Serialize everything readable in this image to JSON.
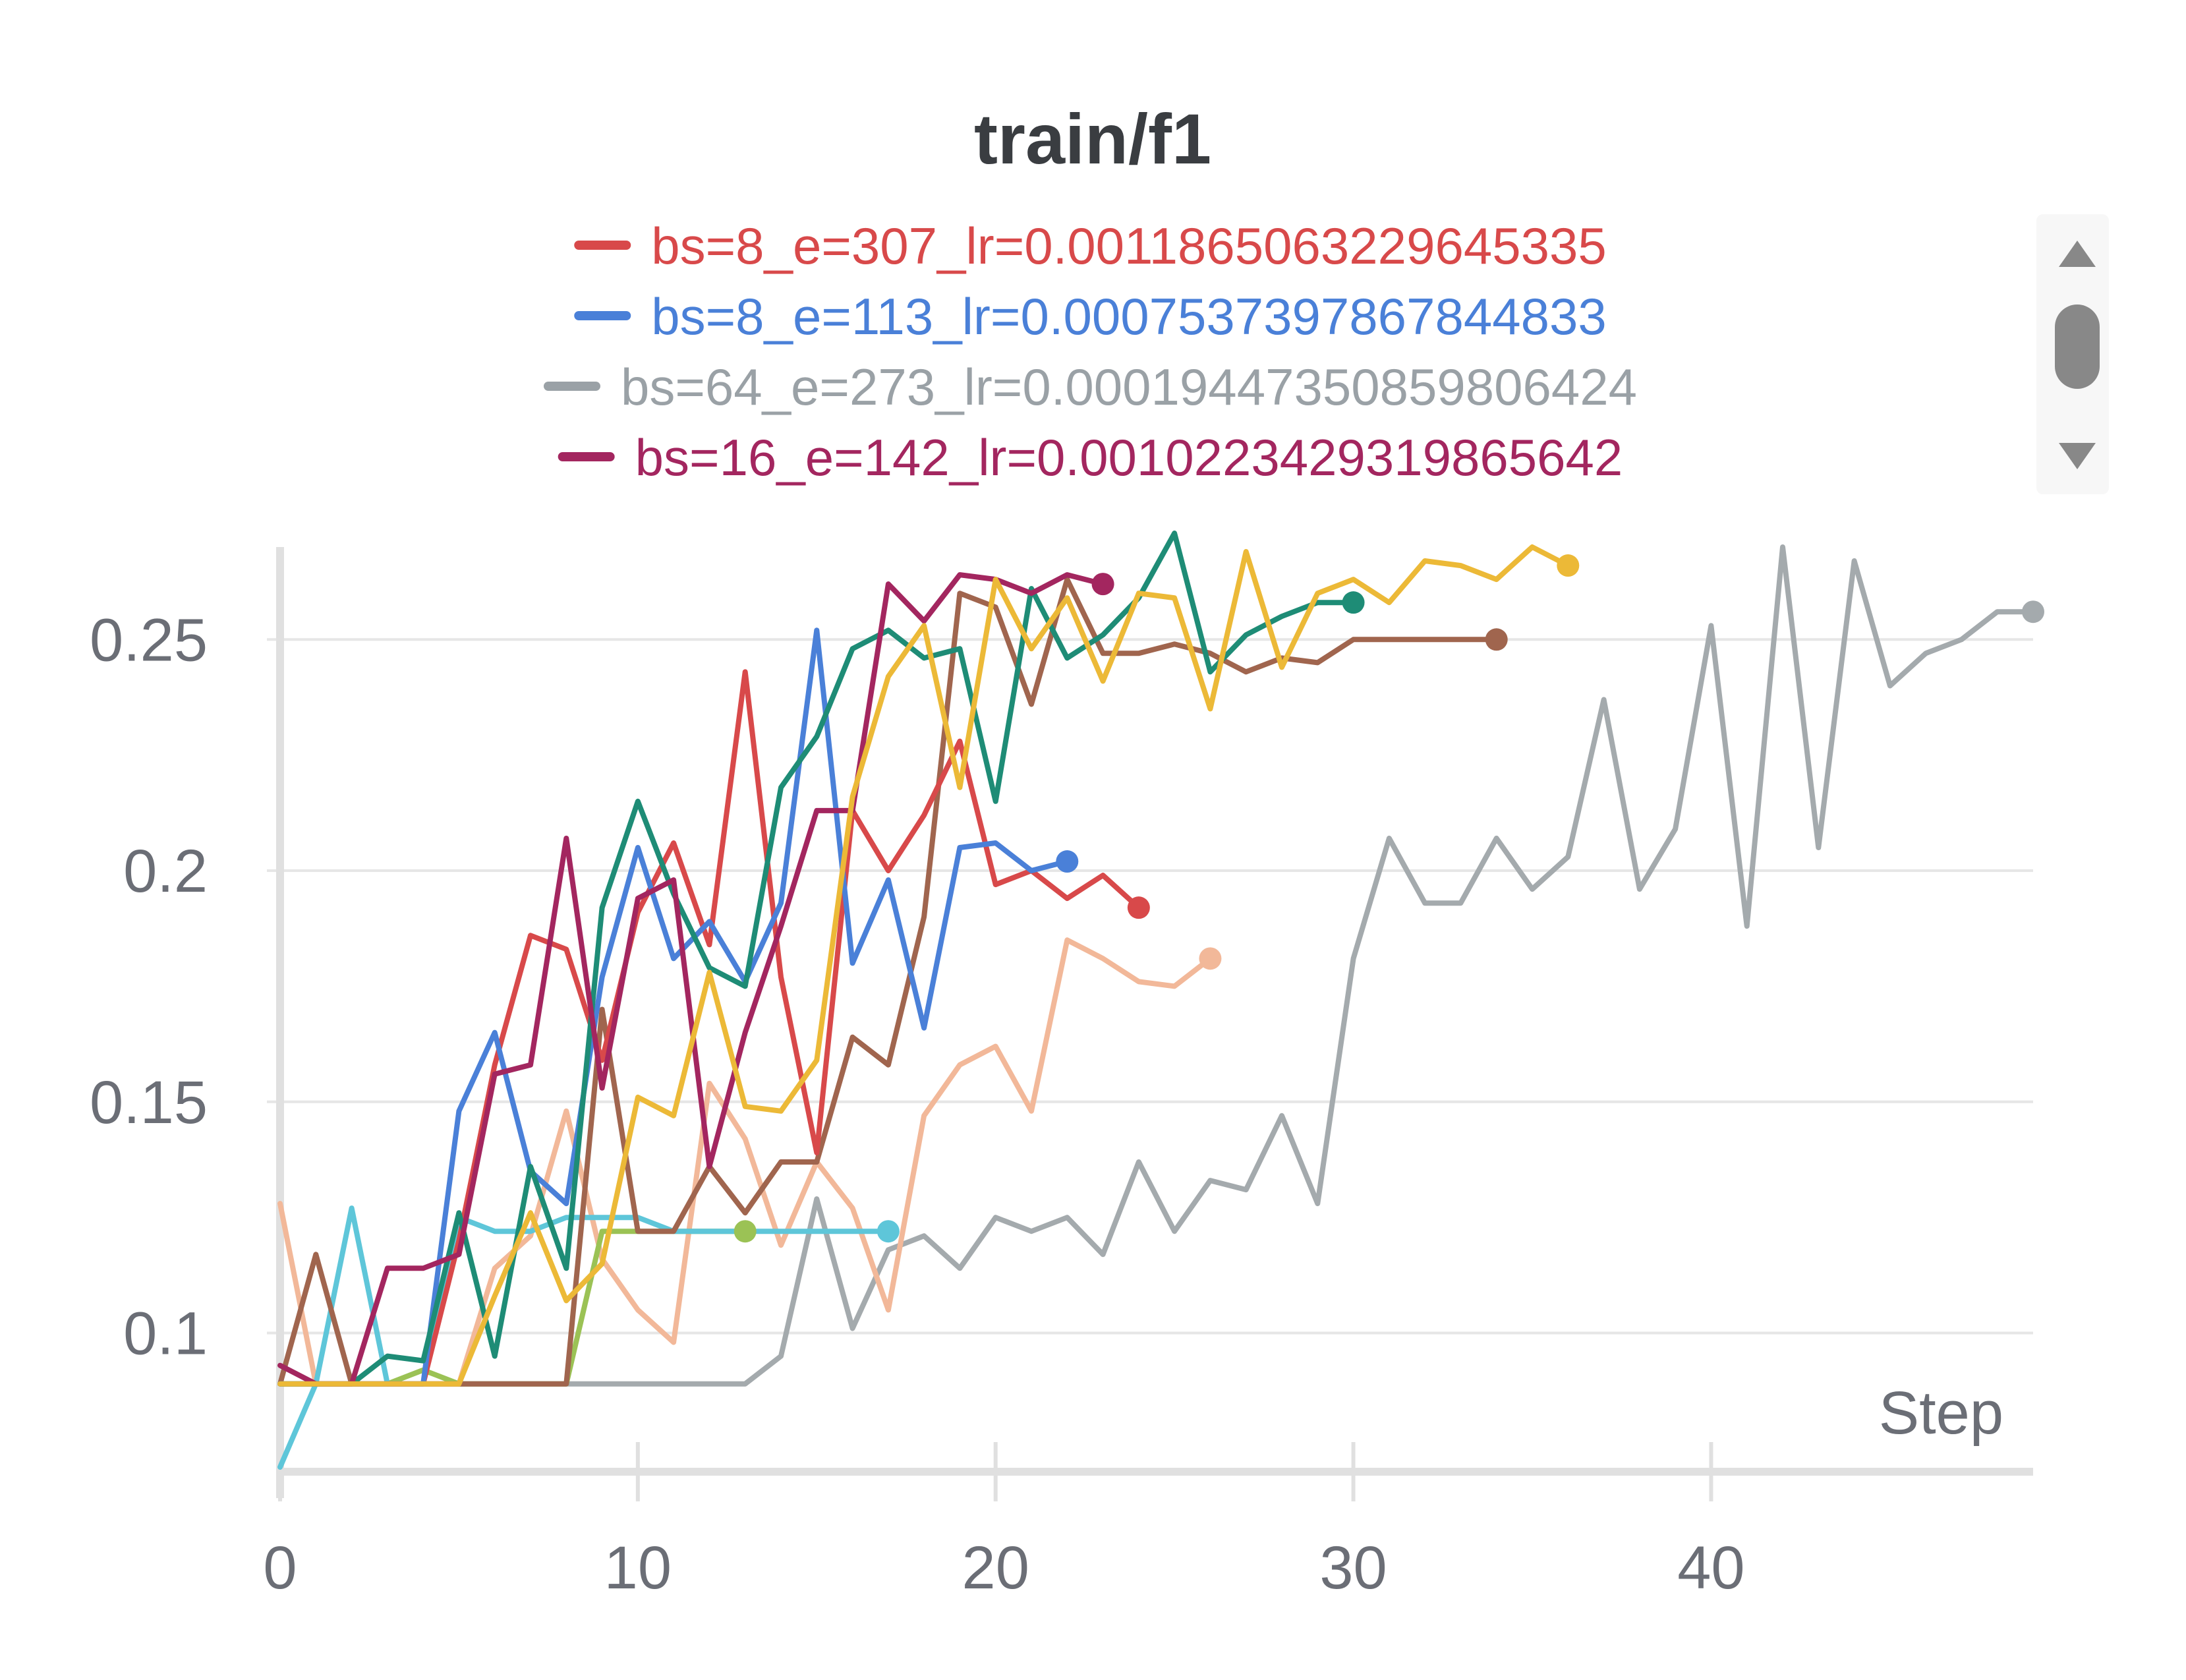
{
  "chart_data": {
    "type": "line",
    "title": "train/f1",
    "xlabel": "Step",
    "ylabel": "",
    "xlim": [
      0,
      49
    ],
    "ylim": [
      0.07,
      0.27
    ],
    "x_ticks": [
      0,
      10,
      20,
      30,
      40
    ],
    "y_ticks": [
      0.1,
      0.15,
      0.2,
      0.25
    ],
    "x_tick_labels": [
      "0",
      "10",
      "20",
      "30",
      "40"
    ],
    "y_tick_labels": [
      "0.1",
      "0.15",
      "0.2",
      "0.25"
    ],
    "grid": true,
    "legend": {
      "placement": "top",
      "entries": [
        {
          "label": "bs=8_e=307_lr=0.0011865063229645335",
          "color": "#d8494a"
        },
        {
          "label": "bs=8_e=113_lr=0.0007537397867844833",
          "color": "#4a80d8"
        },
        {
          "label": "bs=64_e=273_lr=0.00019447350859806424",
          "color": "#9aa1a6"
        },
        {
          "label": "bs=16_e=142_lr=0.0010223429319865642",
          "color": "#a3265f"
        }
      ]
    },
    "series": [
      {
        "name": "bs=64_e=273_lr=0.00019447350859806424",
        "color": "#a4aaad",
        "x": [
          0,
          1,
          2,
          3,
          4,
          5,
          6,
          7,
          8,
          9,
          10,
          11,
          12,
          13,
          14,
          15,
          16,
          17,
          18,
          19,
          20,
          21,
          22,
          23,
          24,
          25,
          26,
          27,
          28,
          29,
          30,
          31,
          32,
          33,
          34,
          35,
          36,
          37,
          38,
          39,
          40,
          41,
          42,
          43,
          44,
          45,
          46,
          47,
          48,
          49
        ],
        "y": [
          0.089,
          0.089,
          0.089,
          0.089,
          0.089,
          0.089,
          0.089,
          0.089,
          0.089,
          0.089,
          0.089,
          0.089,
          0.089,
          0.089,
          0.095,
          0.129,
          0.101,
          0.118,
          0.121,
          0.114,
          0.125,
          0.122,
          0.125,
          0.117,
          0.137,
          0.122,
          0.133,
          0.131,
          0.147,
          0.128,
          0.181,
          0.207,
          0.193,
          0.193,
          0.207,
          0.196,
          0.203,
          0.237,
          0.196,
          0.209,
          0.253,
          0.188,
          0.27,
          0.205,
          0.267,
          0.24,
          0.247,
          0.25,
          0.256,
          0.256
        ]
      },
      {
        "name": "",
        "color": "#f2b899",
        "x": [
          0,
          1,
          2,
          3,
          4,
          5,
          6,
          7,
          8,
          9,
          10,
          11,
          12,
          13,
          14,
          15,
          16,
          17,
          18,
          19,
          20,
          21,
          22,
          23,
          24,
          25,
          26
        ],
        "y": [
          0.128,
          0.089,
          0.089,
          0.089,
          0.089,
          0.089,
          0.114,
          0.121,
          0.148,
          0.116,
          0.105,
          0.098,
          0.154,
          0.142,
          0.119,
          0.137,
          0.127,
          0.105,
          0.147,
          0.158,
          0.162,
          0.148,
          0.185,
          0.181,
          0.176,
          0.175,
          0.181
        ]
      },
      {
        "name": "",
        "color": "#9bc255",
        "x": [
          0,
          1,
          2,
          3,
          4,
          5,
          6,
          7,
          8,
          9,
          10,
          11,
          12,
          13
        ],
        "y": [
          0.089,
          0.089,
          0.089,
          0.089,
          0.092,
          0.089,
          0.089,
          0.089,
          0.089,
          0.122,
          0.122,
          0.122,
          0.122,
          0.122
        ]
      },
      {
        "name": "",
        "color": "#5ec6d9",
        "x": [
          0,
          1,
          2,
          3,
          4,
          5,
          6,
          7,
          8,
          9,
          10,
          11,
          12,
          13,
          14,
          15,
          16,
          17
        ],
        "y": [
          0.071,
          0.089,
          0.127,
          0.089,
          0.089,
          0.125,
          0.122,
          0.122,
          0.125,
          0.125,
          0.125,
          0.122,
          0.122,
          0.122,
          0.122,
          0.122,
          0.122,
          0.122
        ]
      },
      {
        "name": "",
        "color": "#a0654e",
        "x": [
          0,
          1,
          2,
          3,
          4,
          5,
          6,
          7,
          8,
          9,
          10,
          11,
          12,
          13,
          14,
          15,
          16,
          17,
          18,
          19,
          20,
          21,
          22,
          23,
          24,
          25,
          26,
          27,
          28,
          29,
          30,
          31,
          32,
          33,
          34
        ],
        "y": [
          0.089,
          0.117,
          0.089,
          0.089,
          0.089,
          0.089,
          0.089,
          0.089,
          0.089,
          0.17,
          0.122,
          0.122,
          0.136,
          0.126,
          0.137,
          0.137,
          0.164,
          0.158,
          0.19,
          0.26,
          0.257,
          0.236,
          0.263,
          0.247,
          0.247,
          0.249,
          0.247,
          0.243,
          0.246,
          0.245,
          0.25,
          0.25,
          0.25,
          0.25,
          0.25
        ]
      },
      {
        "name": "bs=8_e=307_lr=0.0011865063229645335",
        "color": "#d8494a",
        "x": [
          0,
          1,
          2,
          3,
          4,
          5,
          6,
          7,
          8,
          9,
          10,
          11,
          12,
          13,
          14,
          15,
          16,
          17,
          18,
          19,
          20,
          21,
          22,
          23,
          24
        ],
        "y": [
          0.089,
          0.089,
          0.089,
          0.089,
          0.089,
          0.12,
          0.158,
          0.186,
          0.183,
          0.159,
          0.191,
          0.206,
          0.184,
          0.243,
          0.177,
          0.139,
          0.213,
          0.2,
          0.212,
          0.228,
          0.197,
          0.2,
          0.194,
          0.199,
          0.192
        ]
      },
      {
        "name": "bs=8_e=113_lr=0.0007537397867844833",
        "color": "#4a80d8",
        "x": [
          0,
          1,
          2,
          3,
          4,
          5,
          6,
          7,
          8,
          9,
          10,
          11,
          12,
          13,
          14,
          15,
          16,
          17,
          18,
          19,
          20,
          21,
          22
        ],
        "y": [
          0.089,
          0.089,
          0.089,
          0.089,
          0.089,
          0.148,
          0.165,
          0.135,
          0.128,
          0.177,
          0.205,
          0.181,
          0.189,
          0.176,
          0.193,
          0.252,
          0.18,
          0.198,
          0.166,
          0.205,
          0.206,
          0.2,
          0.202
        ]
      },
      {
        "name": "",
        "color": "#1e8c76",
        "x": [
          0,
          1,
          2,
          3,
          4,
          5,
          6,
          7,
          8,
          9,
          10,
          11,
          12,
          13,
          14,
          15,
          16,
          17,
          18,
          19,
          20,
          21,
          22,
          23,
          24,
          25,
          26,
          27,
          28,
          29,
          30
        ],
        "y": [
          0.089,
          0.089,
          0.089,
          0.095,
          0.094,
          0.126,
          0.095,
          0.136,
          0.114,
          0.192,
          0.215,
          0.195,
          0.179,
          0.175,
          0.218,
          0.229,
          0.248,
          0.252,
          0.246,
          0.248,
          0.215,
          0.261,
          0.246,
          0.251,
          0.259,
          0.273,
          0.243,
          0.251,
          0.255,
          0.258,
          0.258
        ]
      },
      {
        "name": "bs=16_e=142_lr=0.0010223429319865642",
        "color": "#a3265f",
        "x": [
          0,
          1,
          2,
          3,
          4,
          5,
          6,
          7,
          8,
          9,
          10,
          11,
          12,
          13,
          14,
          15,
          16,
          17,
          18,
          19,
          20,
          21,
          22,
          23
        ],
        "y": [
          0.093,
          0.089,
          0.089,
          0.114,
          0.114,
          0.117,
          0.156,
          0.158,
          0.207,
          0.153,
          0.194,
          0.198,
          0.136,
          0.165,
          0.188,
          0.213,
          0.213,
          0.262,
          0.254,
          0.264,
          0.263,
          0.26,
          0.264,
          0.262
        ]
      },
      {
        "name": "",
        "color": "#ecb937",
        "x": [
          0,
          1,
          2,
          3,
          4,
          5,
          6,
          7,
          8,
          9,
          10,
          11,
          12,
          13,
          14,
          15,
          16,
          17,
          18,
          19,
          20,
          21,
          22,
          23,
          24,
          25,
          26,
          27,
          28,
          29,
          30,
          31,
          32,
          33,
          34,
          35,
          36
        ],
        "y": [
          0.089,
          0.089,
          0.089,
          0.089,
          0.089,
          0.089,
          0.108,
          0.126,
          0.107,
          0.115,
          0.151,
          0.147,
          0.178,
          0.149,
          0.148,
          0.159,
          0.216,
          0.242,
          0.253,
          0.218,
          0.263,
          0.248,
          0.259,
          0.241,
          0.26,
          0.259,
          0.235,
          0.269,
          0.244,
          0.26,
          0.263,
          0.258,
          0.267,
          0.266,
          0.263,
          0.27,
          0.266
        ]
      }
    ]
  }
}
